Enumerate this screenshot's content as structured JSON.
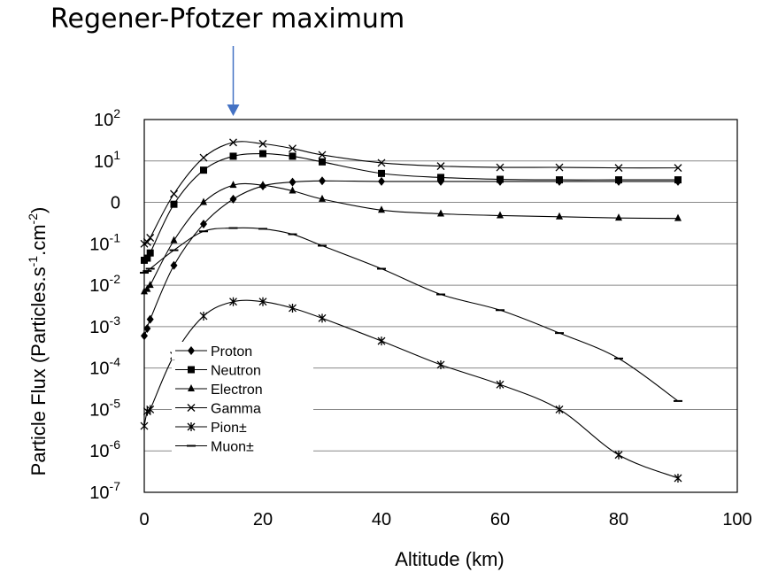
{
  "annotation": {
    "text": "Regener-Pfotzer maximum",
    "arrow_x_km": 15,
    "arrow_color": "#4472C4"
  },
  "chart_data": {
    "type": "line",
    "title": "",
    "xlabel": "Altitude (km)",
    "ylabel_parts": [
      "Particle Flux (Particles.s",
      "-1",
      ".cm",
      "-2",
      ")"
    ],
    "xlim": [
      0,
      100
    ],
    "ylim_exp": [
      -7,
      2
    ],
    "y_scale": "log",
    "grid": "horizontal",
    "legend_placement": "bottom-left",
    "x_ticks": [
      {
        "v": 0,
        "label": "0"
      },
      {
        "v": 20,
        "label": "20"
      },
      {
        "v": 40,
        "label": "40"
      },
      {
        "v": 60,
        "label": "60"
      },
      {
        "v": 80,
        "label": "80"
      },
      {
        "v": 100,
        "label": "100"
      }
    ],
    "y_ticks": [
      {
        "exp": 2,
        "base": "10",
        "sup": "2"
      },
      {
        "exp": 1,
        "base": "10",
        "sup": "1"
      },
      {
        "exp": 0,
        "base": "0",
        "sup": ""
      },
      {
        "exp": -1,
        "base": "10",
        "sup": "-1"
      },
      {
        "exp": -2,
        "base": "10",
        "sup": "-2"
      },
      {
        "exp": -3,
        "base": "10",
        "sup": "-3"
      },
      {
        "exp": -4,
        "base": "10",
        "sup": "-4"
      },
      {
        "exp": -5,
        "base": "10",
        "sup": "-5"
      },
      {
        "exp": -6,
        "base": "10",
        "sup": "-6"
      },
      {
        "exp": -7,
        "base": "10",
        "sup": "-7"
      }
    ],
    "series": [
      {
        "name": "Proton",
        "marker": "diamond",
        "x": [
          0,
          0.5,
          1,
          5,
          10,
          15,
          20,
          25,
          30,
          40,
          50,
          60,
          70,
          80,
          90
        ],
        "y": [
          0.0006,
          0.0009,
          0.0015,
          0.03,
          0.3,
          1.2,
          2.5,
          3.1,
          3.3,
          3.2,
          3.2,
          3.2,
          3.2,
          3.2,
          3.2
        ]
      },
      {
        "name": "Neutron",
        "marker": "square",
        "x": [
          0,
          0.5,
          1,
          5,
          10,
          15,
          20,
          25,
          30,
          40,
          50,
          60,
          70,
          80,
          90
        ],
        "y": [
          0.04,
          0.045,
          0.06,
          0.9,
          6,
          13,
          15,
          13,
          9.5,
          5,
          4,
          3.6,
          3.5,
          3.5,
          3.5
        ]
      },
      {
        "name": "Electron",
        "marker": "triangle",
        "x": [
          0,
          0.5,
          1,
          5,
          10,
          15,
          20,
          25,
          30,
          40,
          50,
          60,
          70,
          80,
          90
        ],
        "y": [
          0.007,
          0.008,
          0.01,
          0.12,
          1.0,
          2.6,
          2.6,
          1.9,
          1.2,
          0.65,
          0.53,
          0.48,
          0.45,
          0.42,
          0.41
        ]
      },
      {
        "name": "Gamma",
        "marker": "x",
        "x": [
          0,
          0.5,
          1,
          5,
          10,
          15,
          20,
          25,
          30,
          40,
          50,
          60,
          70,
          80,
          90
        ],
        "y": [
          0.1,
          0.11,
          0.14,
          1.6,
          12,
          28,
          26,
          20,
          14,
          9,
          7.5,
          7,
          7,
          6.8,
          6.8
        ]
      },
      {
        "name": "Pion±",
        "marker": "star",
        "x": [
          0,
          0.5,
          1,
          5,
          10,
          15,
          20,
          25,
          30,
          40,
          50,
          60,
          70,
          80,
          90
        ],
        "y": [
          4e-06,
          9e-06,
          1e-05,
          0.0002,
          0.0018,
          0.004,
          0.004,
          0.0028,
          0.0016,
          0.00045,
          0.00012,
          4e-05,
          1e-05,
          8e-07,
          2.2e-07
        ]
      },
      {
        "name": "Muon±",
        "marker": "dash",
        "x": [
          0,
          0.5,
          1,
          5,
          10,
          15,
          20,
          25,
          30,
          40,
          50,
          60,
          70,
          80,
          90
        ],
        "y": [
          0.02,
          0.022,
          0.025,
          0.07,
          0.2,
          0.24,
          0.23,
          0.17,
          0.09,
          0.025,
          0.006,
          0.0025,
          0.0007,
          0.00017,
          1.6e-05
        ]
      }
    ]
  }
}
